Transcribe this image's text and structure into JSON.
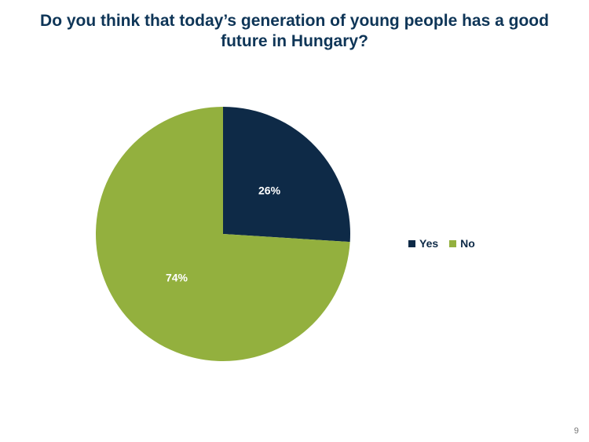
{
  "page": {
    "number": "9"
  },
  "chart_data": {
    "type": "pie",
    "title": "Do you think that today’s generation of young people has a good future in Hungary?",
    "categories": [
      "Yes",
      "No"
    ],
    "values": [
      26,
      74
    ],
    "data_labels": [
      "26%",
      "74%"
    ],
    "colors": [
      "#0e2a47",
      "#93b03e"
    ],
    "legend": "right"
  }
}
